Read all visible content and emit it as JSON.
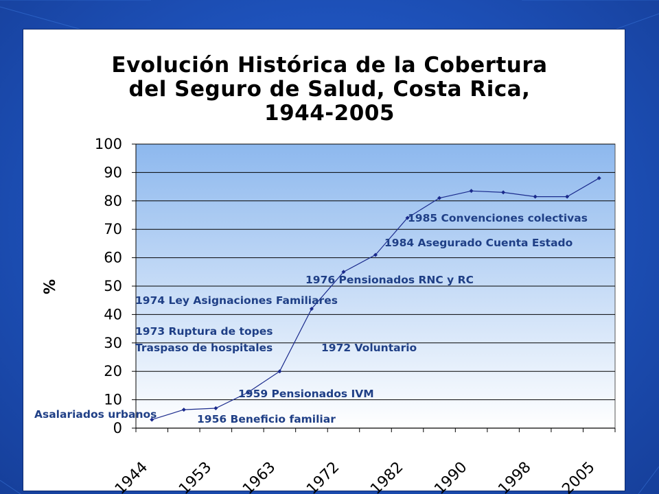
{
  "title_lines": [
    "Evolución Histórica de la Cobertura",
    "del Seguro de Salud, Costa Rica,",
    "1944-2005"
  ],
  "colors": {
    "background": "#1f55c0",
    "plot_gradient_top": "#8db8ee",
    "plot_gradient_bottom": "#ffffff",
    "line": "#1a2a8c",
    "annotation": "#1f3f86"
  },
  "chart_data": {
    "type": "line",
    "title": "Evolución Histórica de la Cobertura del Seguro de Salud, Costa Rica, 1944-2005",
    "ylabel": "%",
    "xlabel": "",
    "ylim": [
      0,
      100
    ],
    "yticks": [
      0,
      10,
      20,
      30,
      40,
      50,
      60,
      70,
      80,
      90,
      100
    ],
    "xtick_labels": [
      "1944",
      "1953",
      "1963",
      "1972",
      "1982",
      "1990",
      "1998",
      "2005"
    ],
    "grid": true,
    "series": [
      {
        "values": [
          3,
          6.5,
          7,
          12.5,
          20,
          42,
          55,
          61,
          74,
          81,
          83.5,
          83,
          81.5,
          81.5,
          88
        ]
      }
    ],
    "annotations": [
      "Asalariados urbanos",
      "1956 Beneficio familiar",
      "1959 Pensionados IVM",
      "1973 Ruptura de topes",
      "Traspaso de hospitales",
      "1972 Voluntario",
      "1974 Ley Asignaciones Familiares",
      "1976 Pensionados RNC y RC",
      "1984 Asegurado Cuenta Estado",
      "1985 Convenciones colectivas"
    ]
  }
}
